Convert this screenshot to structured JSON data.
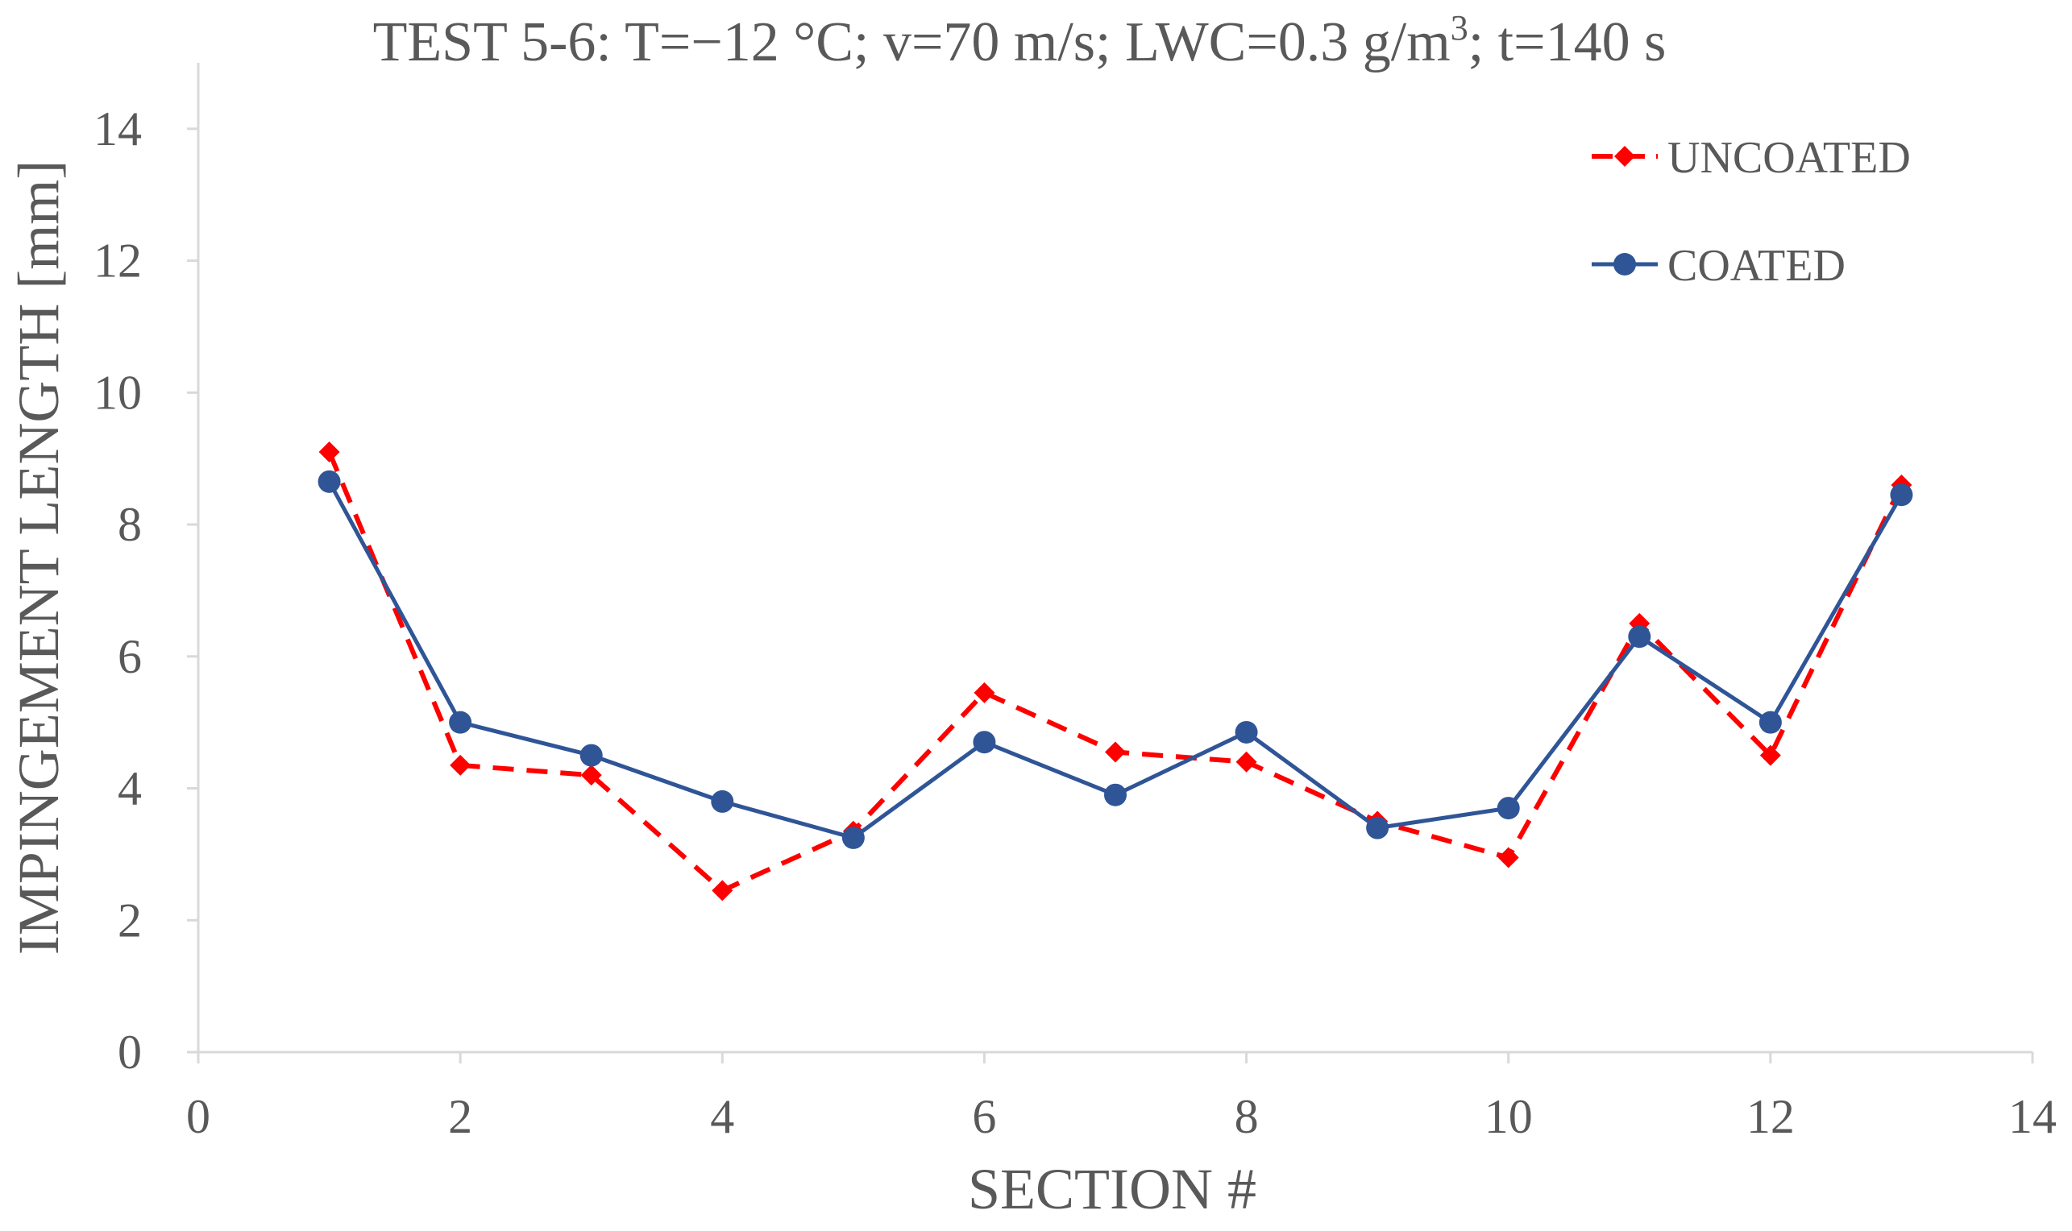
{
  "chart_data": {
    "type": "line",
    "title": {
      "prefix": "TEST 5-6: T=−12 °C; v=70 m/s; LWC=0.3 g/m",
      "superscript": "3",
      "suffix": ";  t=140 s"
    },
    "xlabel": "SECTION #",
    "ylabel": "IMPINGEMENT LENGTH [mm]",
    "xlim": [
      0,
      14
    ],
    "ylim": [
      0,
      15
    ],
    "xticks": [
      0,
      2,
      4,
      6,
      8,
      10,
      12,
      14
    ],
    "yticks": [
      0,
      2,
      4,
      6,
      8,
      10,
      12,
      14
    ],
    "grid": false,
    "legend_position": "top-right",
    "x": [
      1,
      2,
      3,
      4,
      5,
      6,
      7,
      8,
      9,
      10,
      11,
      12,
      13
    ],
    "series": [
      {
        "name": "UNCOATED",
        "color": "#ff0000",
        "line_style": "dashed",
        "marker": "diamond",
        "values": [
          9.1,
          4.35,
          4.2,
          2.45,
          3.35,
          5.45,
          4.55,
          4.4,
          3.5,
          2.95,
          6.5,
          4.5,
          8.6
        ]
      },
      {
        "name": "COATED",
        "color": "#2f5597",
        "line_style": "solid",
        "marker": "circle",
        "values": [
          8.65,
          5.0,
          4.5,
          3.8,
          3.25,
          4.7,
          3.9,
          4.85,
          3.4,
          3.7,
          6.3,
          5.0,
          8.45
        ]
      }
    ]
  }
}
